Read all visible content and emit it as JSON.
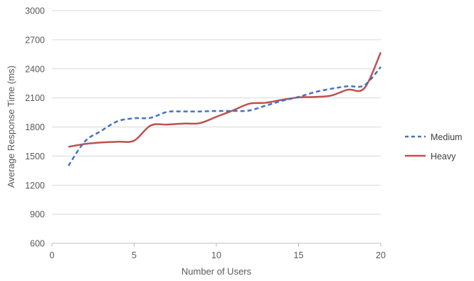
{
  "chart_data": {
    "type": "line",
    "title": "",
    "xlabel": "Number of Users",
    "ylabel": "Average Response Time (ms)",
    "xlim": [
      0,
      20
    ],
    "ylim": [
      600,
      3000
    ],
    "xticks": [
      0,
      5,
      10,
      15,
      20
    ],
    "yticks": [
      600,
      900,
      1200,
      1500,
      1800,
      2100,
      2400,
      2700,
      3000
    ],
    "grid": true,
    "legend_position": "right",
    "series": [
      {
        "name": "Medium",
        "color": "#4472C4",
        "style": "dashed",
        "x": [
          1,
          2,
          3,
          4,
          5,
          6,
          7,
          8,
          9,
          10,
          11,
          12,
          13,
          14,
          15,
          16,
          17,
          18,
          19,
          20
        ],
        "y": [
          1400,
          1650,
          1760,
          1860,
          1890,
          1895,
          1955,
          1960,
          1960,
          1965,
          1965,
          1970,
          2020,
          2070,
          2110,
          2160,
          2195,
          2220,
          2230,
          2420
        ]
      },
      {
        "name": "Heavy",
        "color": "#C0504D",
        "style": "solid",
        "x": [
          1,
          2,
          3,
          4,
          5,
          6,
          7,
          8,
          9,
          10,
          11,
          12,
          13,
          14,
          15,
          16,
          17,
          18,
          19,
          20
        ],
        "y": [
          1595,
          1625,
          1640,
          1648,
          1660,
          1815,
          1825,
          1835,
          1840,
          1905,
          1970,
          2040,
          2050,
          2080,
          2105,
          2110,
          2125,
          2185,
          2200,
          2570
        ]
      }
    ]
  }
}
